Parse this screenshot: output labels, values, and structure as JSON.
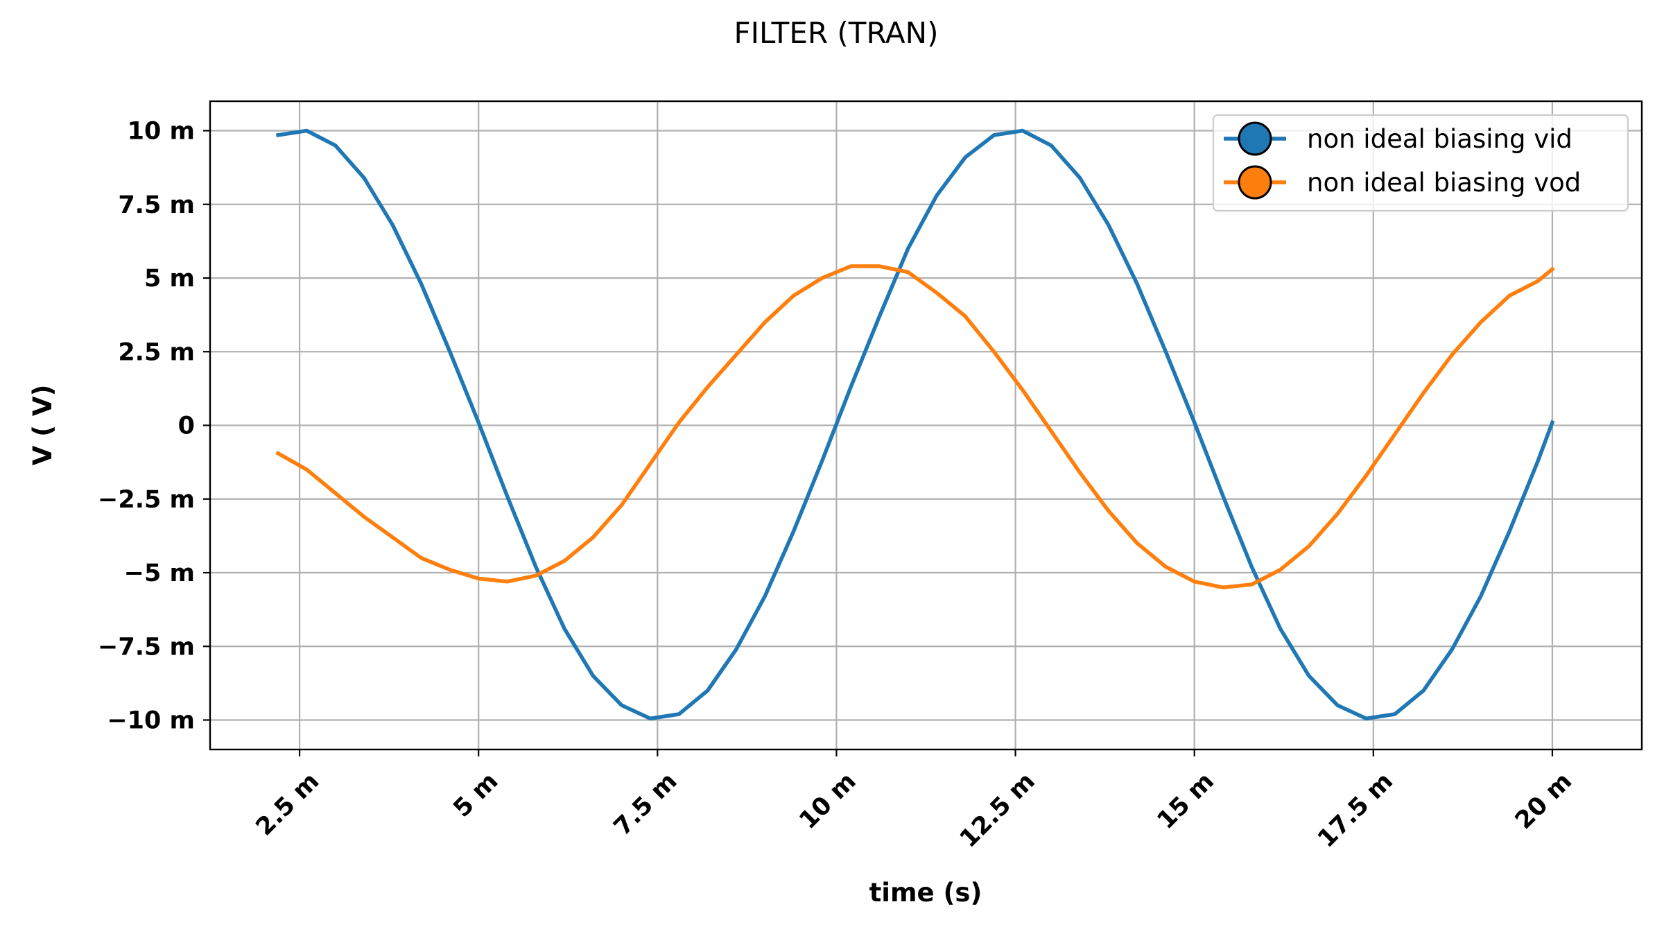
{
  "chart_data": {
    "type": "line",
    "title": "FILTER (TRAN)",
    "xlabel": "time (s)",
    "ylabel": "V ( V)",
    "xlim": [
      0.00125,
      0.02125
    ],
    "ylim": [
      -0.011,
      0.011
    ],
    "grid": true,
    "legend_position": "top-right",
    "x_ticks": [
      {
        "value": 0.0025,
        "label": "2.5 m"
      },
      {
        "value": 0.005,
        "label": "5 m"
      },
      {
        "value": 0.0075,
        "label": "7.5 m"
      },
      {
        "value": 0.01,
        "label": "10 m"
      },
      {
        "value": 0.0125,
        "label": "12.5 m"
      },
      {
        "value": 0.015,
        "label": "15 m"
      },
      {
        "value": 0.0175,
        "label": "17.5 m"
      },
      {
        "value": 0.02,
        "label": "20 m"
      }
    ],
    "y_ticks": [
      {
        "value": 0.01,
        "label": "10 m"
      },
      {
        "value": 0.0075,
        "label": "7.5 m"
      },
      {
        "value": 0.005,
        "label": "5 m"
      },
      {
        "value": 0.0025,
        "label": "2.5 m"
      },
      {
        "value": 0,
        "label": "0"
      },
      {
        "value": -0.0025,
        "label": "−2.5 m"
      },
      {
        "value": -0.005,
        "label": "−5 m"
      },
      {
        "value": -0.0075,
        "label": "−7.5 m"
      },
      {
        "value": -0.01,
        "label": "−10 m"
      }
    ],
    "series": [
      {
        "name": "non ideal biasing vid",
        "color": "#1f77b4",
        "x": [
          0.0022,
          0.0026,
          0.003,
          0.0034,
          0.0038,
          0.0042,
          0.0046,
          0.005,
          0.0054,
          0.0058,
          0.0062,
          0.0066,
          0.007,
          0.0074,
          0.0078,
          0.0082,
          0.0086,
          0.009,
          0.0094,
          0.0098,
          0.0102,
          0.0106,
          0.011,
          0.0114,
          0.0118,
          0.0122,
          0.0126,
          0.013,
          0.0134,
          0.0138,
          0.0142,
          0.0146,
          0.015,
          0.0154,
          0.0158,
          0.0162,
          0.0166,
          0.017,
          0.0174,
          0.0178,
          0.0182,
          0.0186,
          0.019,
          0.0194,
          0.0198,
          0.02
        ],
        "y": [
          0.00985,
          0.01,
          0.0095,
          0.0084,
          0.0068,
          0.0048,
          0.0025,
          0.0001,
          -0.0024,
          -0.0048,
          -0.0069,
          -0.0085,
          -0.0095,
          -0.00995,
          -0.0098,
          -0.009,
          -0.0076,
          -0.0058,
          -0.0036,
          -0.0012,
          0.0013,
          0.0037,
          0.006,
          0.0078,
          0.0091,
          0.00985,
          0.01,
          0.0095,
          0.0084,
          0.0068,
          0.0048,
          0.0025,
          0.0001,
          -0.0024,
          -0.0048,
          -0.0069,
          -0.0085,
          -0.0095,
          -0.00995,
          -0.0098,
          -0.009,
          -0.0076,
          -0.0058,
          -0.0036,
          -0.0012,
          0.0001
        ]
      },
      {
        "name": "non ideal biasing vod",
        "color": "#ff7f0e",
        "x": [
          0.0022,
          0.0026,
          0.003,
          0.0034,
          0.0038,
          0.0042,
          0.0046,
          0.005,
          0.0054,
          0.0058,
          0.0062,
          0.0066,
          0.007,
          0.0074,
          0.0078,
          0.0082,
          0.0086,
          0.009,
          0.0094,
          0.0098,
          0.0102,
          0.0106,
          0.011,
          0.0114,
          0.0118,
          0.0122,
          0.0126,
          0.013,
          0.0134,
          0.0138,
          0.0142,
          0.0146,
          0.015,
          0.0154,
          0.0158,
          0.0162,
          0.0166,
          0.017,
          0.0174,
          0.0178,
          0.0182,
          0.0186,
          0.019,
          0.0194,
          0.0198,
          0.02
        ],
        "y": [
          -0.00095,
          -0.0015,
          -0.0023,
          -0.0031,
          -0.0038,
          -0.0045,
          -0.0049,
          -0.0052,
          -0.0053,
          -0.0051,
          -0.0046,
          -0.0038,
          -0.0027,
          -0.0013,
          0.0001,
          0.0013,
          0.0024,
          0.0035,
          0.0044,
          0.005,
          0.0054,
          0.0054,
          0.0052,
          0.0045,
          0.0037,
          0.0025,
          0.0012,
          -0.0002,
          -0.0016,
          -0.0029,
          -0.004,
          -0.0048,
          -0.0053,
          -0.0055,
          -0.0054,
          -0.0049,
          -0.0041,
          -0.003,
          -0.0017,
          -0.0003,
          0.0011,
          0.0024,
          0.0035,
          0.0044,
          0.0049,
          0.0053
        ]
      }
    ]
  }
}
